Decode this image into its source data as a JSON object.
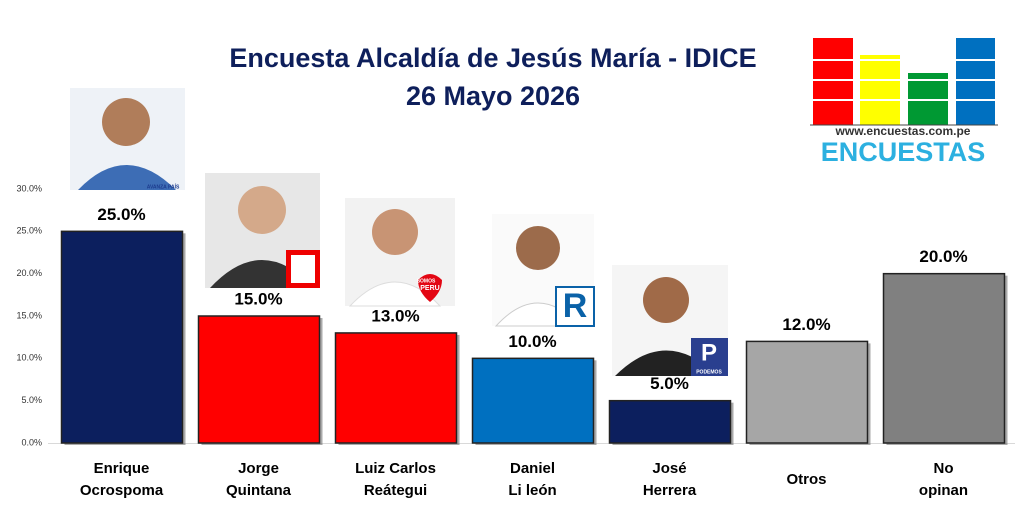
{
  "chart_data": {
    "type": "bar",
    "title": "Encuesta Alcaldía de Jesús María - IDICE",
    "subtitle": "26 Mayo 2026",
    "categories": [
      "Enrique\nOcrospoma",
      "Jorge\nQuintana",
      "Luiz Carlos\nReátegui",
      "Daniel\nLi león",
      "José\nHerrera",
      "Otros",
      "No\nopinan"
    ],
    "values": [
      25,
      15,
      13,
      10,
      5,
      12,
      20
    ],
    "value_labels": [
      "25.0%",
      "15.0%",
      "13.0%",
      "10.0%",
      "5.0%",
      "12.0%",
      "20.0%"
    ],
    "colors": [
      "#0c1f5e",
      "#ff0000",
      "#ff0000",
      "#0070c0",
      "#0c1f5e",
      "#a6a6a6",
      "#808080"
    ],
    "ylim": [
      0,
      30
    ],
    "yticks": [
      {
        "value": 0,
        "label": "0.0%"
      },
      {
        "value": 5,
        "label": "5.0%"
      },
      {
        "value": 10,
        "label": "10.0%"
      },
      {
        "value": 15,
        "label": "15.0%"
      },
      {
        "value": 20,
        "label": "20.0%"
      },
      {
        "value": 25,
        "label": "25.0%"
      },
      {
        "value": 30,
        "label": "30.0%"
      }
    ],
    "grid": false,
    "party_labels": [
      "AVANZA PAÍS",
      "SOMOS",
      "PERU",
      "R",
      "P",
      "PODEMOS"
    ]
  },
  "logo": {
    "url": "www.encuestas.com.pe",
    "name": "ENCUESTAS"
  }
}
